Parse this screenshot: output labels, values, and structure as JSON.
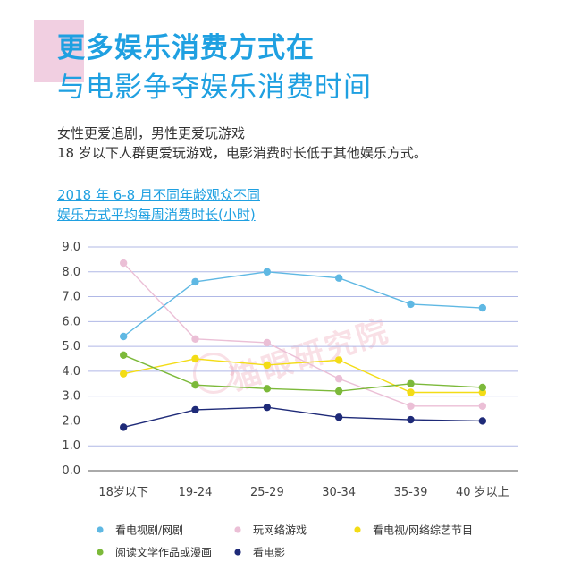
{
  "title_line1": "更多娱乐消费方式在",
  "title_line2": "与电影争夺娱乐消费时间",
  "subtitle_line1": "女性更爱追剧，男性更爱玩游戏",
  "subtitle_line2": "18 岁以下人群更爱玩游戏，电影消费时长低于其他娱乐方式。",
  "chart_title_line1": "2018 年 6-8 月不同年龄观众不同",
  "chart_title_line2": "娱乐方式平均每周消费时长(小时)",
  "watermark": "猫眼研究院",
  "colors": {
    "accent": "#1fa0e1",
    "accent_block": "#f1cfe1",
    "axis": "#777777",
    "grid": "#b0b8e6"
  },
  "chart_data": {
    "type": "line",
    "categories": [
      "18岁以下",
      "19-24",
      "25-29",
      "30-34",
      "35-39",
      "40 岁以上"
    ],
    "yticks": [
      "0.0",
      "1.0",
      "2.0",
      "3.0",
      "4.0",
      "5.0",
      "6.0",
      "7.0",
      "8.0",
      "9.0"
    ],
    "ylim": [
      0,
      9
    ],
    "grid": true,
    "legend_position": "bottom",
    "series": [
      {
        "name": "看电视剧/网剧",
        "color": "#5fb8e3",
        "values": [
          5.4,
          7.6,
          8.0,
          7.75,
          6.7,
          6.55
        ]
      },
      {
        "name": "玩网络游戏",
        "color": "#ebbfd6",
        "values": [
          8.35,
          5.3,
          5.15,
          3.7,
          2.6,
          2.6
        ]
      },
      {
        "name": "看电视/网络综艺节目",
        "color": "#f3dc16",
        "values": [
          3.9,
          4.5,
          4.25,
          4.45,
          3.15,
          3.15
        ]
      },
      {
        "name": "阅读文学作品或漫画",
        "color": "#7cb93a",
        "values": [
          4.65,
          3.45,
          3.3,
          3.2,
          3.5,
          3.35
        ]
      },
      {
        "name": "看电影",
        "color": "#1e2a78",
        "values": [
          1.75,
          2.45,
          2.55,
          2.15,
          2.05,
          2.0
        ]
      }
    ]
  }
}
